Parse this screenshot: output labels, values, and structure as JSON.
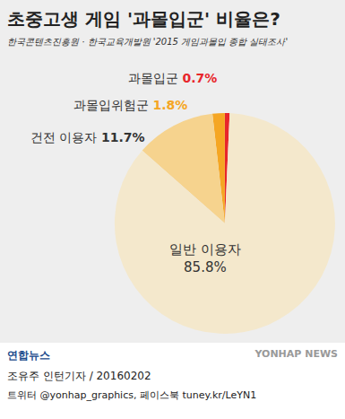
{
  "chart_data": {
    "type": "pie",
    "title": "초중고생 게임 '과몰입군' 비율은?",
    "subtitle": "한국콘텐츠진흥원 · 한국교육개발원 '2015 게임과몰입 종합 실태조사'",
    "categories": [
      "과몰입군",
      "과몰입위험군",
      "건전 이용자",
      "일반 이용자"
    ],
    "values": [
      0.7,
      1.8,
      11.7,
      85.8
    ],
    "value_labels": [
      "0.7%",
      "1.8%",
      "11.7%",
      "85.8%"
    ],
    "colors": [
      "#e8262b",
      "#f5a623",
      "#f6d38e",
      "#f4e8cc"
    ],
    "data_labels": true
  },
  "footer": {
    "logo": "연합뉴스",
    "credit": "조유주 인턴기자 / 20160202",
    "social": "트위터 @yonhap_graphics, 페이스북 tuney.kr/LeYN1",
    "watermark": "YONHAP NEWS"
  }
}
